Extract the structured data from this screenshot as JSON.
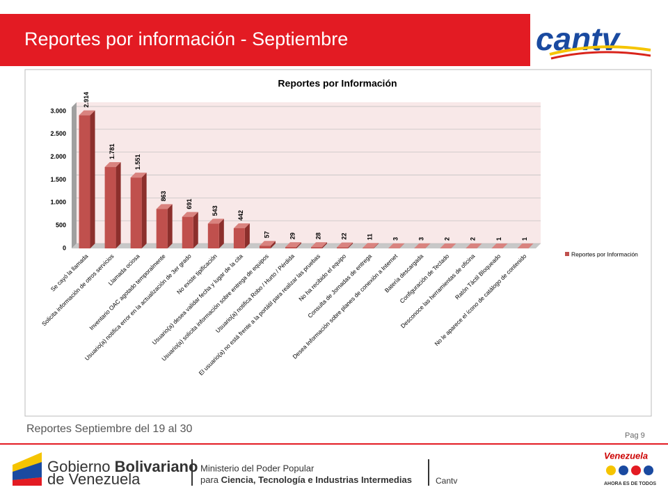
{
  "header": {
    "title": "Reportes por información - Septiembre",
    "logo": "cantv"
  },
  "chart_data": {
    "type": "bar",
    "title": "Reportes por Información",
    "categories": [
      "Se cayó la llamada",
      "Solicita información de otros servicios",
      "Llamada ociosa",
      "Inventario OAC agotado temporalmente",
      "Usuario(a) notifica error en la actualización de 3er grado",
      "No existe tipificación",
      "Usuario(a) desea validar fecha y lugar de la cita",
      "Usuario(a) solicita información sobre entrega de equipos",
      "Usuario(a) notifica Robo / Hurto / Pérdida",
      "El usuario(a) no está frente a la portátil para realizar las pruebas",
      "No ha recibido el equipo",
      "Consulta de Jornadas de entrega",
      "Desea Información sobre planes de conexión a Internet",
      "Batería descargada",
      "Configuración de Teclado",
      "Desconoce las herramientas de oficina",
      "Ratón Táctil Bloqueado",
      "No le aparece el ícono de catálogo de contenido"
    ],
    "series": [
      {
        "name": "Reportes por Información",
        "color": "#c0504d",
        "values": [
          2914,
          1781,
          1551,
          863,
          691,
          543,
          442,
          57,
          29,
          28,
          22,
          11,
          3,
          3,
          2,
          2,
          1,
          1
        ],
        "value_labels": [
          "2.914",
          "1.781",
          "1.551",
          "863",
          "691",
          "543",
          "442",
          "57",
          "29",
          "28",
          "22",
          "11",
          "3",
          "3",
          "2",
          "2",
          "1",
          "1"
        ]
      }
    ],
    "ylim": [
      0,
      3000
    ],
    "yticks": [
      0,
      500,
      {
        "value": 1000,
        "label": "1.000"
      },
      {
        "value": 1500,
        "label": "1.500"
      },
      {
        "value": 2000,
        "label": "2.000"
      },
      {
        "value": 2500,
        "label": "2.500"
      },
      {
        "value": 3000,
        "label": "3.000"
      }
    ],
    "grid": true,
    "legend": "right"
  },
  "footer": {
    "note": "Reportes Septiembre del 19 al 30",
    "page": "Pag 9",
    "gov_line1": "Gobierno ",
    "gov_bold": "Bolivariano",
    "gov_line2": "de Venezuela",
    "ministry_line1": "Ministerio del Poder Popular",
    "ministry_pre": "para ",
    "ministry_bold": "Ciencia, Tecnología e Industrias Intermedias",
    "cantv": "Cantv",
    "venezuela": "Venezuela",
    "slogan": "AHORA ES DE TODOS"
  }
}
